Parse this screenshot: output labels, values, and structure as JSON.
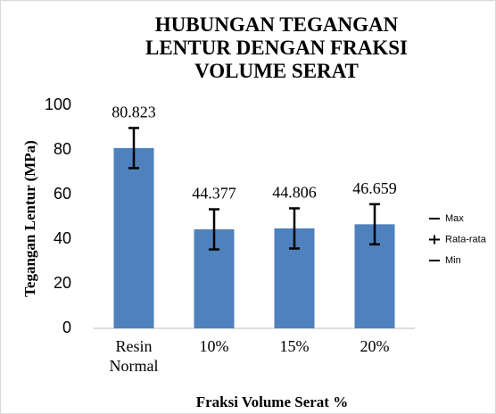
{
  "chart_data": {
    "type": "bar",
    "title": "HUBUNGAN TEGANGAN LENTUR DENGAN FRAKSI VOLUME SERAT",
    "x_label": "Fraksi Volume Serat %",
    "y_label": "Tegangan Lentur (MPa)",
    "categories": [
      "Resin Normal",
      "10%",
      "15%",
      "20%"
    ],
    "values": [
      80.823,
      44.377,
      44.806,
      46.659
    ],
    "errors": [
      9,
      9,
      9,
      9
    ],
    "color": "#4f81bd",
    "ylim": [
      0,
      100
    ],
    "yticks": [
      0,
      20,
      40,
      60,
      80,
      100
    ],
    "grid": false,
    "legend": [
      "Max",
      "Rata-rata",
      "Min"
    ],
    "legend_position": "right"
  }
}
